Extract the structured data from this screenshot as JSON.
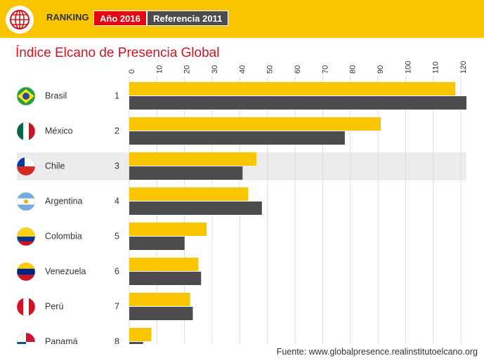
{
  "header": {
    "ranking_label": "RANKING",
    "filter_2016": "Año 2016",
    "filter_2011": "Referencia 2011"
  },
  "colors": {
    "brand_yellow": "#f9c400",
    "series_2011": "#4d4b4e",
    "accent_red": "#e30613",
    "title_red": "#d1141d",
    "highlight_row": "#ececee"
  },
  "icons": {
    "logo": "globe-logo-icon"
  },
  "highlighted_country": "Chile",
  "source": "Fuente: www.globalpresence.realinstitutoelcano.org",
  "chart_data": {
    "type": "bar",
    "orientation": "horizontal",
    "title": "Índice Elcano de Presencia Global",
    "categories": [
      "Brasil",
      "México",
      "Chile",
      "Argentina",
      "Colombia",
      "Venezuela",
      "Perú",
      "Panamá"
    ],
    "ranks": [
      "1",
      "2",
      "3",
      "4",
      "5",
      "6",
      "7",
      "8"
    ],
    "series": [
      {
        "name": "Año 2016",
        "color": "#f9c400",
        "values": [
          118,
          91,
          46,
          43,
          28,
          25,
          22,
          8
        ]
      },
      {
        "name": "Referencia 2011",
        "color": "#4d4b4e",
        "values": [
          122,
          78,
          41,
          48,
          20,
          26,
          23,
          5
        ]
      }
    ],
    "xlim": [
      0,
      122
    ],
    "ticks": [
      0,
      10,
      20,
      30,
      40,
      50,
      60,
      70,
      80,
      90,
      100,
      110,
      120
    ],
    "grid": true,
    "axis_position": "top"
  }
}
